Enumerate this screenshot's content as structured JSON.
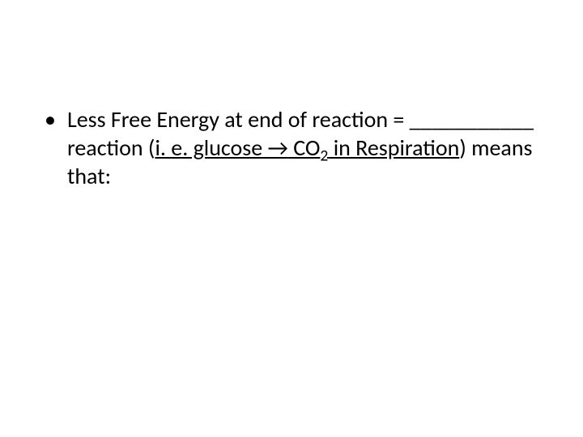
{
  "slide": {
    "background_color": "#ffffff",
    "text_color": "#000000",
    "font_family": "Calibri",
    "font_size_pt": 28,
    "bullet": {
      "glyph": "•",
      "text_before_blank": "Less Free Energy at end of reaction = ",
      "blank": "___________",
      "text_after_blank_1": " reaction (",
      "underlined_segment_1": "i. e. glucose ",
      "arrow": "→",
      "underlined_segment_2": " CO",
      "subscript": "2",
      "underlined_segment_3": " in Respiration",
      "text_after_underline": ") means that:"
    }
  }
}
